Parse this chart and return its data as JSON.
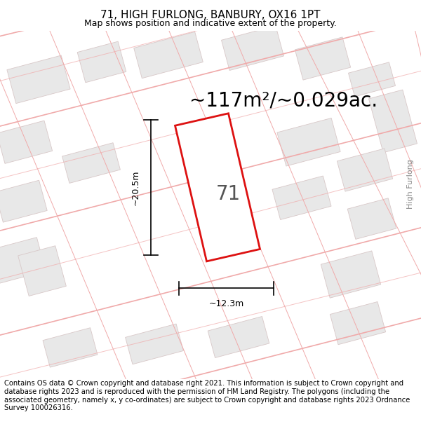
{
  "title": "71, HIGH FURLONG, BANBURY, OX16 1PT",
  "subtitle": "Map shows position and indicative extent of the property.",
  "area_text": "~117m²/~0.029ac.",
  "label_71": "71",
  "dim_width": "~12.3m",
  "dim_height": "~20.5m",
  "street_label": "High Furlong",
  "footer": "Contains OS data © Crown copyright and database right 2021. This information is subject to Crown copyright and database rights 2023 and is reproduced with the permission of HM Land Registry. The polygons (including the associated geometry, namely x, y co-ordinates) are subject to Crown copyright and database rights 2023 Ordnance Survey 100026316.",
  "bg_color": "#ffffff",
  "map_bg": "#f7f7f7",
  "plot_color": "#dd1111",
  "street_line_color": "#f0aaaa",
  "building_fill": "#e8e8e8",
  "building_edge": "#d8c8c8",
  "title_fontsize": 11,
  "subtitle_fontsize": 9,
  "area_fontsize": 20,
  "label_fontsize": 20,
  "dim_fontsize": 9,
  "footer_fontsize": 7.2,
  "street_label_fontsize": 8
}
